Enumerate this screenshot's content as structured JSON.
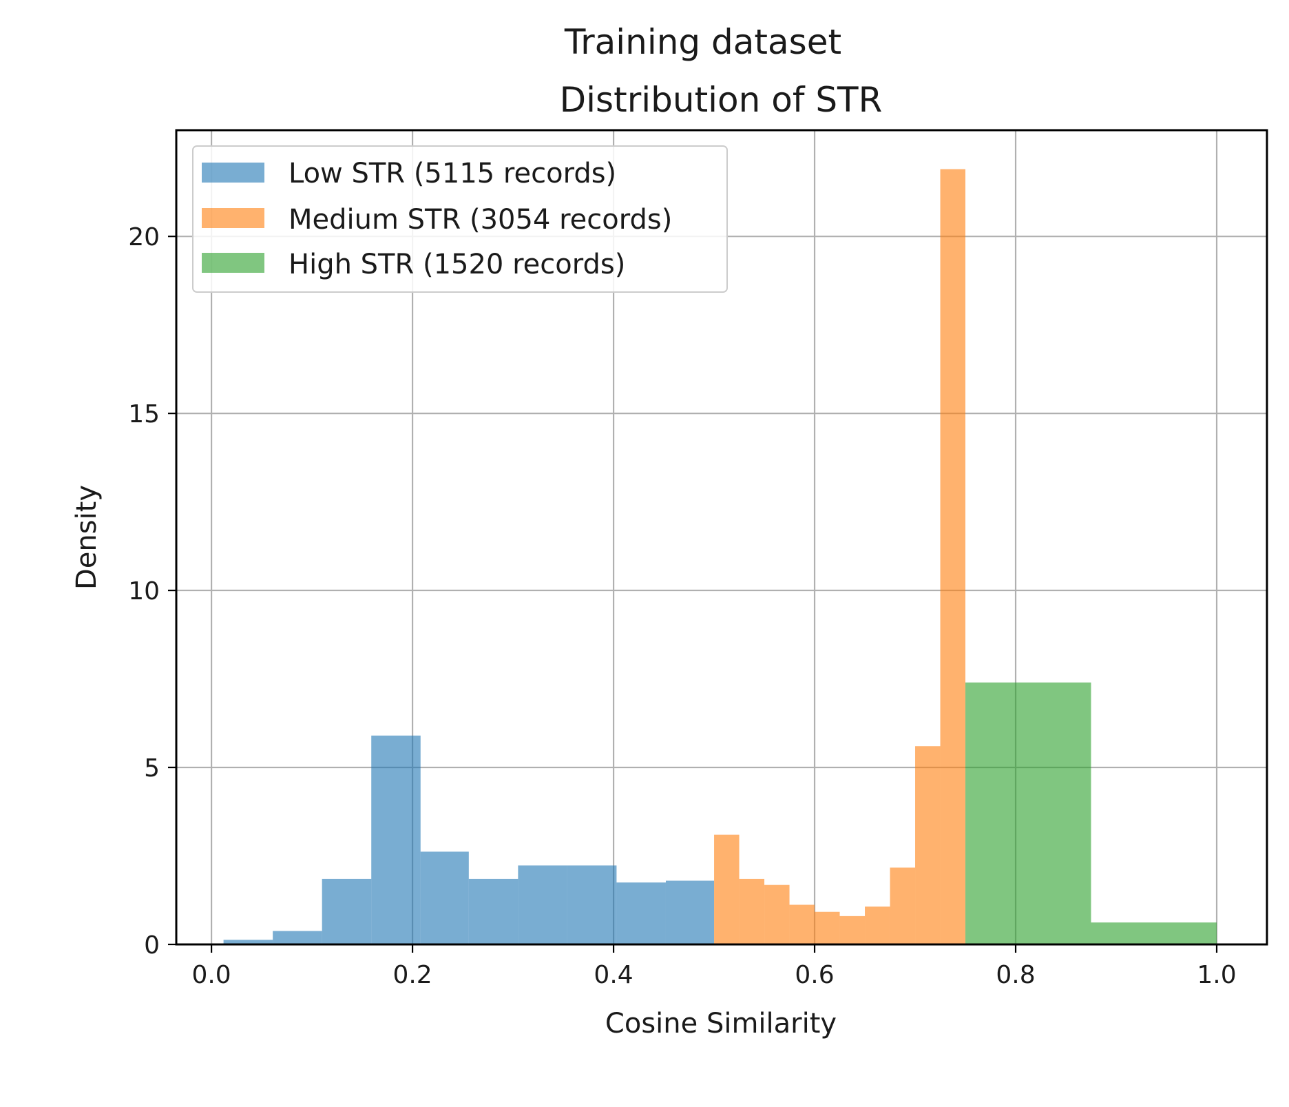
{
  "chart_data": {
    "type": "bar",
    "subtype": "histogram",
    "title": "Training dataset",
    "subtitle": "Distribution of STR",
    "xlabel": "Cosine Similarity",
    "ylabel": "Density",
    "xlim": [
      -0.035,
      1.05
    ],
    "ylim": [
      0,
      23
    ],
    "xticks": [
      {
        "value": 0.0,
        "label": "0.0"
      },
      {
        "value": 0.2,
        "label": "0.2"
      },
      {
        "value": 0.4,
        "label": "0.4"
      },
      {
        "value": 0.6,
        "label": "0.6"
      },
      {
        "value": 0.8,
        "label": "0.8"
      },
      {
        "value": 1.0,
        "label": "1.0"
      }
    ],
    "yticks": [
      {
        "value": 0,
        "label": "0"
      },
      {
        "value": 5,
        "label": "5"
      },
      {
        "value": 10,
        "label": "10"
      },
      {
        "value": 15,
        "label": "15"
      },
      {
        "value": 20,
        "label": "20"
      }
    ],
    "grid": true,
    "legend_position": "top-left",
    "series": [
      {
        "name": "Low STR (5115 records)",
        "color": "#1f77b4",
        "opacity": 0.6,
        "bin_edges": [
          0.012,
          0.061,
          0.11,
          0.159,
          0.208,
          0.256,
          0.305,
          0.354,
          0.403,
          0.452,
          0.5
        ],
        "values": [
          0.13,
          0.38,
          1.85,
          5.9,
          2.62,
          1.85,
          2.23,
          2.23,
          1.75,
          1.8
        ]
      },
      {
        "name": "Medium STR (3054 records)",
        "color": "#ff7f0e",
        "opacity": 0.6,
        "bin_edges": [
          0.5,
          0.525,
          0.55,
          0.575,
          0.6,
          0.625,
          0.65,
          0.675,
          0.7,
          0.725,
          0.75
        ],
        "values": [
          3.1,
          1.85,
          1.68,
          1.12,
          0.92,
          0.8,
          1.07,
          2.17,
          5.6,
          21.9
        ]
      },
      {
        "name": "High STR (1520 records)",
        "color": "#2ca02c",
        "opacity": 0.6,
        "bin_edges": [
          0.75,
          0.875,
          1.0
        ],
        "values": [
          7.4,
          0.62
        ]
      }
    ]
  }
}
